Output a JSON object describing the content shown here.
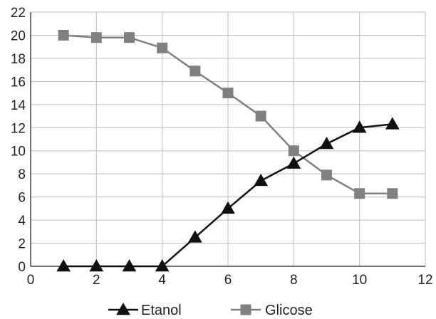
{
  "chart_data": {
    "type": "line",
    "title": "",
    "xlabel": "",
    "ylabel": "",
    "xlim": [
      0,
      12
    ],
    "ylim": [
      0,
      22
    ],
    "xticks": [
      0,
      2,
      4,
      6,
      8,
      10,
      12
    ],
    "yticks": [
      0,
      2,
      4,
      6,
      8,
      10,
      12,
      14,
      16,
      18,
      20,
      22
    ],
    "grid": true,
    "legend_position": "bottom",
    "series": [
      {
        "name": "Etanol",
        "marker": "triangle",
        "color": "#111111",
        "x": [
          1,
          2,
          3,
          4,
          5,
          6,
          7,
          8,
          9,
          10,
          11
        ],
        "y": [
          0,
          0,
          0,
          0,
          2.5,
          5,
          7.4,
          8.9,
          10.6,
          12,
          12.3
        ]
      },
      {
        "name": "Glicose",
        "marker": "square",
        "color": "#808080",
        "x": [
          1,
          2,
          3,
          4,
          5,
          6,
          7,
          8,
          9,
          10,
          11
        ],
        "y": [
          20,
          19.8,
          19.8,
          18.9,
          16.9,
          15,
          13,
          10,
          7.9,
          6.3,
          6.3
        ]
      }
    ]
  }
}
